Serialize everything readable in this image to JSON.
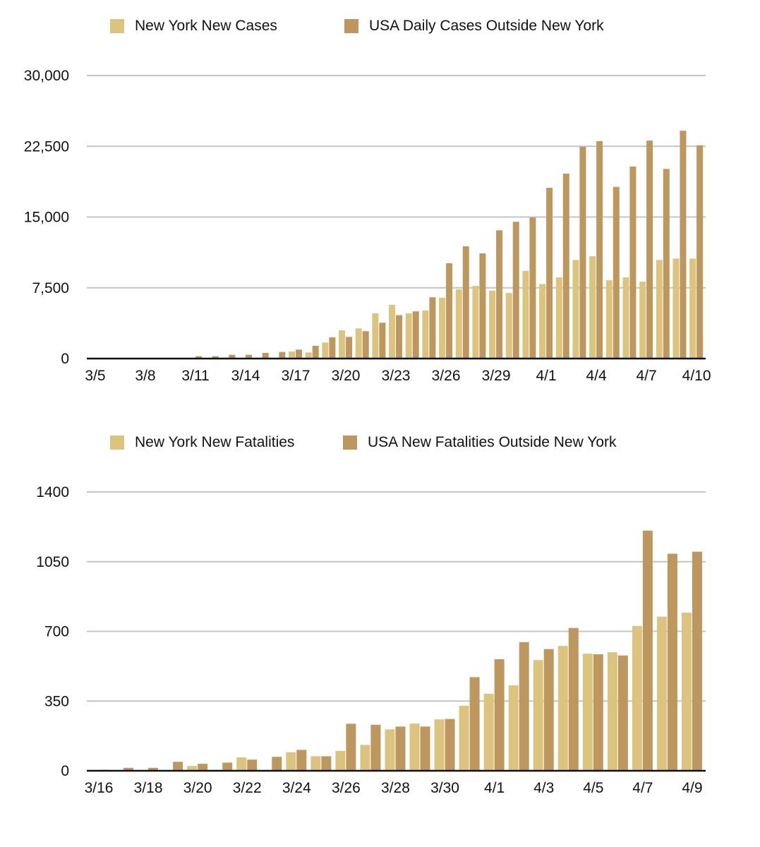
{
  "colors": {
    "ny": "#dcc47e",
    "usa": "#bd975e",
    "grid": "#c4c4c4",
    "axis": "#111111"
  },
  "chart_data": [
    {
      "type": "bar",
      "title": "",
      "xlabel": "",
      "ylabel": "",
      "ylim": [
        0,
        30000
      ],
      "grid": true,
      "legend_position": "top",
      "yticks": [
        "0",
        "7,500",
        "15,000",
        "22,500",
        "30,000"
      ],
      "ytick_values": [
        0,
        7500,
        15000,
        22500,
        30000
      ],
      "xtick_labels": [
        "3/5",
        "3/8",
        "3/11",
        "3/14",
        "3/17",
        "3/20",
        "3/23",
        "3/26",
        "3/29",
        "4/1",
        "4/4",
        "4/7",
        "4/10"
      ],
      "categories": [
        "3/5",
        "3/6",
        "3/7",
        "3/8",
        "3/9",
        "3/10",
        "3/11",
        "3/12",
        "3/13",
        "3/14",
        "3/15",
        "3/16",
        "3/17",
        "3/18",
        "3/19",
        "3/20",
        "3/21",
        "3/22",
        "3/23",
        "3/24",
        "3/25",
        "3/26",
        "3/27",
        "3/28",
        "3/29",
        "3/30",
        "3/31",
        "4/1",
        "4/2",
        "4/3",
        "4/4",
        "4/5",
        "4/6",
        "4/7",
        "4/8",
        "4/9",
        "4/10"
      ],
      "series": [
        {
          "name": "New York New Cases",
          "values": [
            0,
            0,
            0,
            0,
            0,
            0,
            50,
            0,
            100,
            0,
            100,
            50,
            750,
            650,
            1700,
            3000,
            3200,
            4800,
            5700,
            4800,
            5100,
            6450,
            7330,
            7700,
            7200,
            6950,
            9300,
            7900,
            8600,
            10450,
            10850,
            8300,
            8600,
            8150,
            10450,
            10600,
            10600
          ]
        },
        {
          "name": "USA Daily Cases Outside New York",
          "values": [
            0,
            0,
            0,
            0,
            0,
            0,
            250,
            250,
            400,
            400,
            600,
            700,
            950,
            1350,
            2250,
            2300,
            2900,
            3800,
            4600,
            5000,
            6500,
            10100,
            11900,
            11150,
            13600,
            14500,
            14950,
            18100,
            19600,
            22450,
            23050,
            18200,
            20350,
            23100,
            20100,
            24150,
            22600
          ]
        }
      ]
    },
    {
      "type": "bar",
      "title": "",
      "xlabel": "",
      "ylabel": "",
      "ylim": [
        0,
        1400
      ],
      "grid": true,
      "legend_position": "top",
      "yticks": [
        "0",
        "350",
        "700",
        "1050",
        "1400"
      ],
      "ytick_values": [
        0,
        350,
        700,
        1050,
        1400
      ],
      "xtick_labels": [
        "3/16",
        "3/18",
        "3/20",
        "3/22",
        "3/24",
        "3/26",
        "3/28",
        "3/30",
        "4/1",
        "4/3",
        "4/5",
        "4/7",
        "4/9"
      ],
      "categories": [
        "3/16",
        "3/17",
        "3/18",
        "3/19",
        "3/20",
        "3/21",
        "3/22",
        "3/23",
        "3/24",
        "3/25",
        "3/26",
        "3/27",
        "3/28",
        "3/29",
        "3/30",
        "3/31",
        "4/1",
        "4/2",
        "4/3",
        "4/4",
        "4/5",
        "4/6",
        "4/7",
        "4/8",
        "4/9"
      ],
      "series": [
        {
          "name": "New York New Fatalities",
          "values": [
            0,
            0,
            0,
            0,
            24,
            5,
            67,
            0,
            93,
            73,
            100,
            130,
            208,
            237,
            258,
            327,
            387,
            429,
            556,
            627,
            588,
            595,
            727,
            774,
            794
          ]
        },
        {
          "name": "USA New Fatalities Outside New York",
          "values": [
            5,
            15,
            15,
            45,
            35,
            41,
            56,
            70,
            105,
            73,
            236,
            231,
            222,
            222,
            260,
            470,
            560,
            646,
            611,
            717,
            585,
            579,
            1206,
            1090,
            1100
          ]
        }
      ]
    }
  ]
}
